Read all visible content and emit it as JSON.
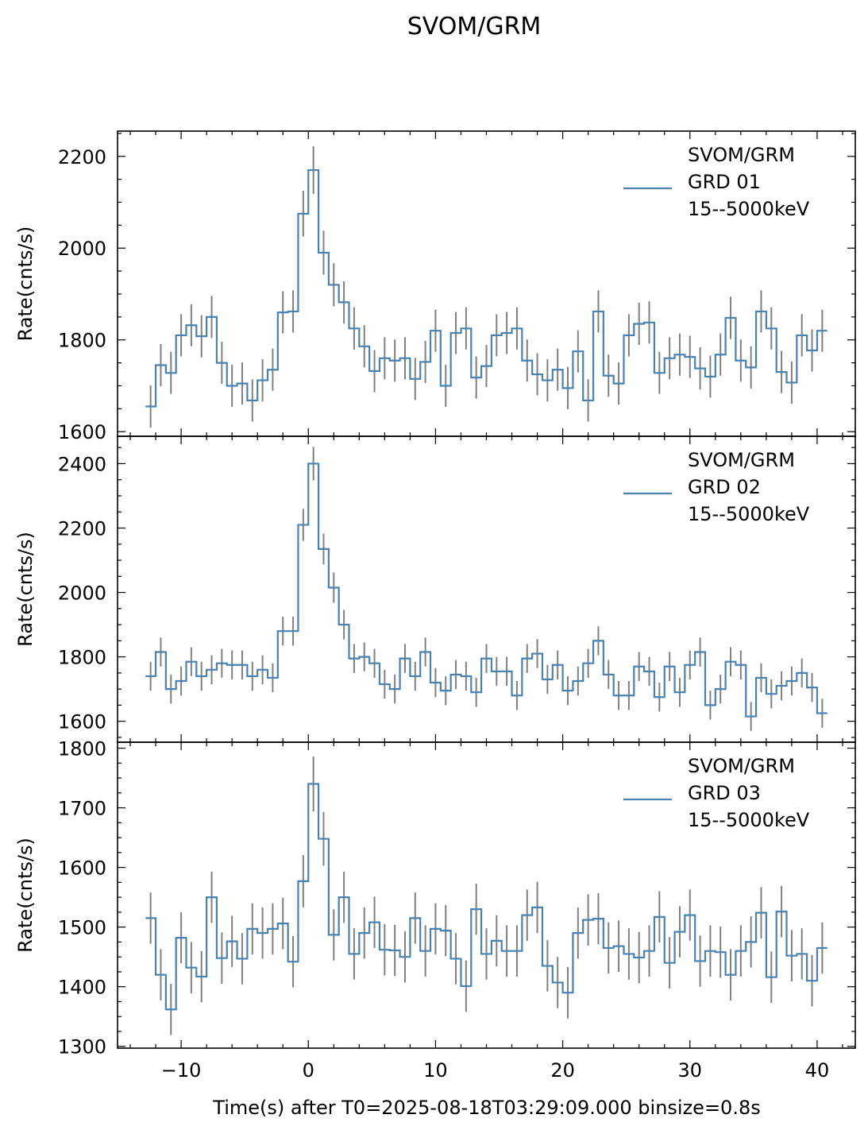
{
  "figure": {
    "title": "SVOM/GRM",
    "xlabel": "Time(s) after T0=2025-08-18T03:29:09.000 binsize=0.8s",
    "ylabel": "Rate(cnts/s)"
  },
  "colors": {
    "series": "#4682b4",
    "errorbar": "#808080",
    "axis": "#000000"
  },
  "chart_data": [
    {
      "type": "line",
      "legend": [
        "SVOM/GRM",
        " GRD 01",
        "15--5000keV"
      ],
      "ylabel": "Rate(cnts/s)",
      "xlim": [
        -15,
        43
      ],
      "ylim": [
        1590,
        2255
      ],
      "yticks": [
        1600,
        1800,
        2000,
        2200
      ],
      "binsize": 0.8,
      "x_start": -12.4,
      "values": [
        1655,
        1745,
        1728,
        1810,
        1832,
        1808,
        1850,
        1750,
        1700,
        1705,
        1668,
        1712,
        1735,
        1860,
        1862,
        2075,
        2170,
        1990,
        1920,
        1882,
        1825,
        1786,
        1732,
        1760,
        1755,
        1760,
        1715,
        1752,
        1820,
        1700,
        1815,
        1825,
        1718,
        1743,
        1810,
        1815,
        1825,
        1755,
        1725,
        1712,
        1735,
        1695,
        1775,
        1668,
        1862,
        1722,
        1705,
        1810,
        1835,
        1838,
        1728,
        1760,
        1768,
        1763,
        1738,
        1720,
        1768,
        1848,
        1755,
        1740,
        1862,
        1825,
        1730,
        1707,
        1810,
        1777,
        1820
      ],
      "errors": [
        46,
        46,
        46,
        46,
        46,
        46,
        46,
        46,
        46,
        46,
        46,
        46,
        46,
        46,
        46,
        50,
        52,
        48,
        47,
        46,
        46,
        46,
        46,
        46,
        46,
        46,
        46,
        46,
        46,
        46,
        46,
        46,
        46,
        46,
        46,
        46,
        46,
        46,
        46,
        46,
        46,
        46,
        46,
        46,
        46,
        46,
        46,
        46,
        46,
        46,
        46,
        46,
        46,
        46,
        46,
        46,
        46,
        46,
        46,
        46,
        46,
        46,
        46,
        46,
        46,
        46,
        46
      ]
    },
    {
      "type": "line",
      "legend": [
        "SVOM/GRM",
        " GRD 02",
        "15--5000keV"
      ],
      "ylabel": "Rate(cnts/s)",
      "xlim": [
        -15,
        43
      ],
      "ylim": [
        1535,
        2485
      ],
      "yticks": [
        1600,
        1800,
        2000,
        2200,
        2400
      ],
      "binsize": 0.8,
      "x_start": -12.4,
      "values": [
        1740,
        1815,
        1700,
        1725,
        1785,
        1740,
        1760,
        1780,
        1775,
        1775,
        1740,
        1760,
        1735,
        1880,
        1880,
        2210,
        2400,
        2135,
        2015,
        1900,
        1795,
        1800,
        1780,
        1715,
        1700,
        1795,
        1740,
        1815,
        1720,
        1695,
        1745,
        1740,
        1690,
        1795,
        1755,
        1755,
        1680,
        1795,
        1810,
        1730,
        1775,
        1695,
        1725,
        1780,
        1850,
        1745,
        1680,
        1680,
        1770,
        1755,
        1675,
        1770,
        1690,
        1775,
        1815,
        1650,
        1700,
        1785,
        1775,
        1615,
        1735,
        1685,
        1710,
        1725,
        1750,
        1705,
        1625
      ],
      "errors": [
        45,
        45,
        45,
        45,
        45,
        45,
        45,
        45,
        45,
        45,
        45,
        45,
        45,
        45,
        45,
        50,
        52,
        48,
        47,
        46,
        45,
        45,
        45,
        45,
        45,
        45,
        45,
        45,
        45,
        45,
        45,
        45,
        45,
        45,
        45,
        45,
        45,
        45,
        45,
        45,
        45,
        45,
        45,
        45,
        45,
        45,
        45,
        45,
        45,
        45,
        45,
        45,
        45,
        45,
        45,
        45,
        45,
        45,
        45,
        45,
        45,
        45,
        45,
        45,
        45,
        45,
        45
      ]
    },
    {
      "type": "line",
      "legend": [
        "SVOM/GRM",
        " GRD 03",
        "15--5000keV"
      ],
      "ylabel": "Rate(cnts/s)",
      "xlim": [
        -15,
        43
      ],
      "ylim": [
        1297,
        1810
      ],
      "yticks": [
        1300,
        1400,
        1500,
        1600,
        1700,
        1800
      ],
      "binsize": 0.8,
      "x_start": -12.4,
      "values": [
        1515,
        1420,
        1362,
        1482,
        1432,
        1417,
        1550,
        1448,
        1476,
        1447,
        1497,
        1490,
        1497,
        1506,
        1442,
        1577,
        1740,
        1648,
        1487,
        1550,
        1455,
        1490,
        1508,
        1462,
        1461,
        1450,
        1515,
        1460,
        1497,
        1494,
        1447,
        1401,
        1530,
        1455,
        1477,
        1460,
        1460,
        1520,
        1533,
        1435,
        1407,
        1390,
        1490,
        1512,
        1514,
        1465,
        1468,
        1455,
        1449,
        1460,
        1517,
        1440,
        1492,
        1520,
        1443,
        1460,
        1458,
        1420,
        1460,
        1475,
        1524,
        1416,
        1526,
        1452,
        1455,
        1410,
        1465
      ],
      "errors": [
        43,
        43,
        43,
        43,
        43,
        43,
        43,
        43,
        43,
        43,
        43,
        43,
        43,
        43,
        43,
        44,
        46,
        45,
        43,
        43,
        43,
        43,
        43,
        43,
        43,
        43,
        43,
        43,
        43,
        43,
        43,
        43,
        43,
        43,
        43,
        43,
        43,
        43,
        43,
        43,
        43,
        43,
        43,
        43,
        43,
        43,
        43,
        43,
        43,
        43,
        43,
        43,
        43,
        43,
        43,
        43,
        43,
        43,
        43,
        43,
        43,
        43,
        43,
        43,
        43,
        43,
        43
      ]
    }
  ],
  "xticks": [
    -10,
    0,
    10,
    20,
    30,
    40
  ],
  "xtick_labels": [
    "−10",
    "0",
    "10",
    "20",
    "30",
    "40"
  ]
}
